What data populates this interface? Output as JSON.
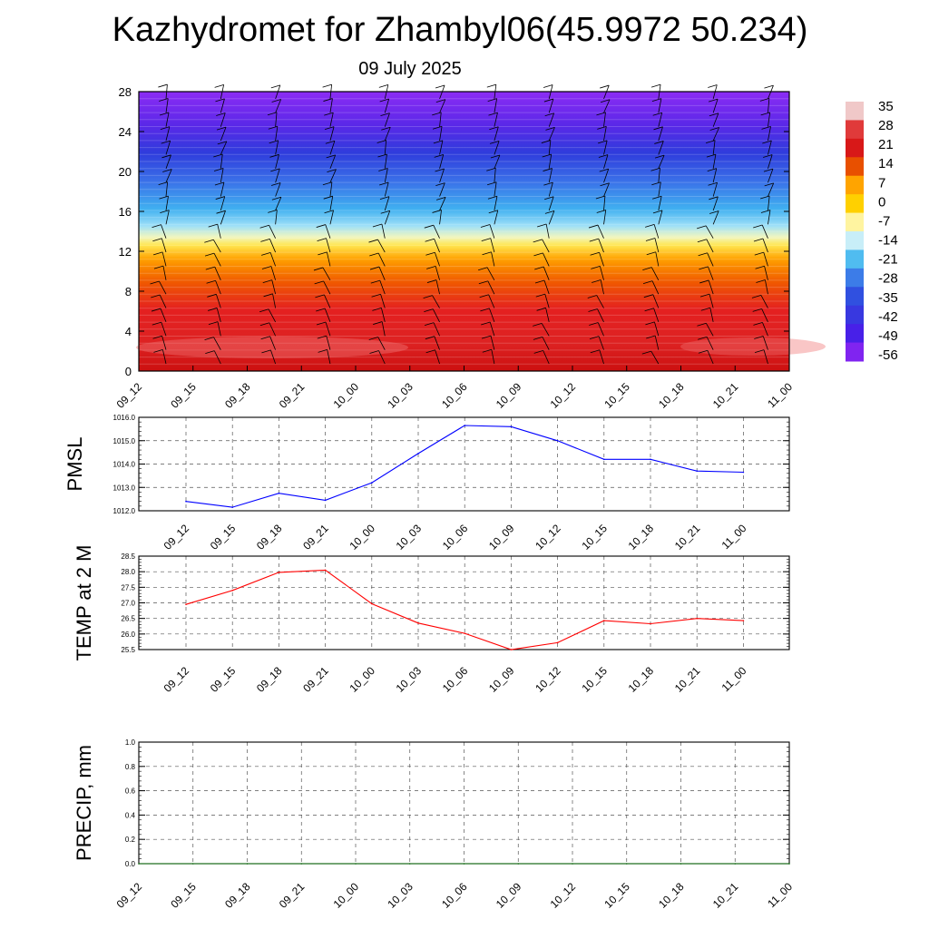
{
  "title": "Kazhydromet for Zhambyl06(45.9972 50.234)",
  "subtitle": "09 July 2025",
  "chart_data": [
    {
      "type": "heatmap",
      "title": "",
      "xlabel": "",
      "ylabel": "",
      "x": [
        "09_12",
        "09_15",
        "09_18",
        "09_21",
        "10_00",
        "10_03",
        "10_06",
        "10_09",
        "10_12",
        "10_15",
        "10_18",
        "10_21",
        "11_00"
      ],
      "ylim": [
        0,
        28
      ],
      "yticks": [
        0,
        4,
        8,
        12,
        16,
        20,
        24,
        28
      ],
      "colorbar": {
        "labels": [
          "35",
          "28",
          "21",
          "14",
          "7",
          "0",
          "-7",
          "-14",
          "-21",
          "-28",
          "-35",
          "-42",
          "-49",
          "-56"
        ],
        "colors": [
          "#f0c8c8",
          "#e03a3a",
          "#d81818",
          "#e85000",
          "#ffa400",
          "#ffd000",
          "#fff4a0",
          "#c8eef8",
          "#50bcf0",
          "#3c7ce8",
          "#3050e0",
          "#3838e0",
          "#4820e8",
          "#8024f0"
        ]
      },
      "overlay": "wind barbs"
    },
    {
      "type": "line",
      "ylabel": "PMSL",
      "x": [
        "09_12",
        "09_15",
        "09_18",
        "09_21",
        "10_00",
        "10_03",
        "10_06",
        "10_09",
        "10_12",
        "10_15",
        "10_18",
        "10_21",
        "11_00"
      ],
      "yticks": [
        "1012.0",
        "1013.0",
        "1014.0",
        "1015.0",
        "1016.0"
      ],
      "ylim": [
        1012.0,
        1016.0
      ],
      "grid": true,
      "series": [
        {
          "color": "#0000ff",
          "values": [
            1012.4,
            1012.15,
            1012.75,
            1012.45,
            1013.2,
            1014.45,
            1015.65,
            1015.6,
            1015.0,
            1014.2,
            1014.2,
            1013.7,
            1013.65
          ]
        }
      ]
    },
    {
      "type": "line",
      "ylabel": "TEMP at 2 M",
      "x": [
        "09_12",
        "09_15",
        "09_18",
        "09_21",
        "10_00",
        "10_03",
        "10_06",
        "10_09",
        "10_12",
        "10_15",
        "10_18",
        "10_21",
        "11_00"
      ],
      "yticks": [
        "25.5",
        "26.0",
        "26.5",
        "27.0",
        "27.5",
        "28.0",
        "28.5"
      ],
      "ylim": [
        25.5,
        28.5
      ],
      "grid": true,
      "series": [
        {
          "color": "#ff0000",
          "values": [
            26.95,
            27.4,
            27.98,
            28.05,
            26.97,
            26.35,
            26.02,
            25.5,
            25.72,
            26.43,
            26.33,
            26.5,
            26.43
          ]
        }
      ]
    },
    {
      "type": "line",
      "ylabel": "PRECIP, mm",
      "x": [
        "09_12",
        "09_15",
        "09_18",
        "09_21",
        "10_00",
        "10_03",
        "10_06",
        "10_09",
        "10_12",
        "10_15",
        "10_18",
        "10_21",
        "11_00"
      ],
      "yticks": [
        "0.0",
        "0.2",
        "0.4",
        "0.6",
        "0.8",
        "1.0"
      ],
      "ylim": [
        0,
        1.0
      ],
      "grid": true,
      "series": [
        {
          "color": "#006400",
          "values": [
            0,
            0,
            0,
            0,
            0,
            0,
            0,
            0,
            0,
            0,
            0,
            0,
            0
          ]
        }
      ]
    }
  ]
}
